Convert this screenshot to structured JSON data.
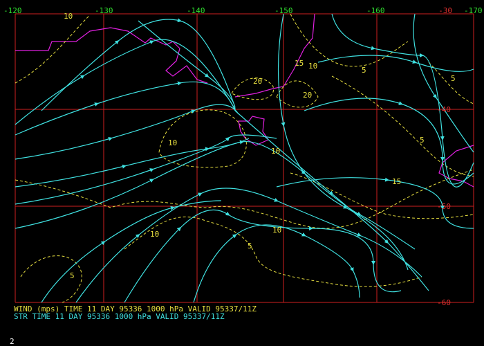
{
  "map": {
    "longitude_labels": [
      "-120",
      "-130",
      "-140",
      "-150",
      "-160",
      "-170"
    ],
    "latitude_labels": [
      "-30",
      "-40",
      "-50",
      "-60"
    ],
    "contour_labels": [
      "10",
      "20",
      "15",
      "10",
      "20",
      "5",
      "5",
      "5",
      "10",
      "10",
      "15",
      "10",
      "10",
      "5",
      "5"
    ],
    "caption": {
      "wind": "WIND (mps) TIME 11 DAY 95336 1000 hPa VALID 95337/11Z",
      "streamlines": "STR TIME 11 DAY 95336 1000 hPa VALID 95337/11Z"
    },
    "page_number": "2"
  }
}
